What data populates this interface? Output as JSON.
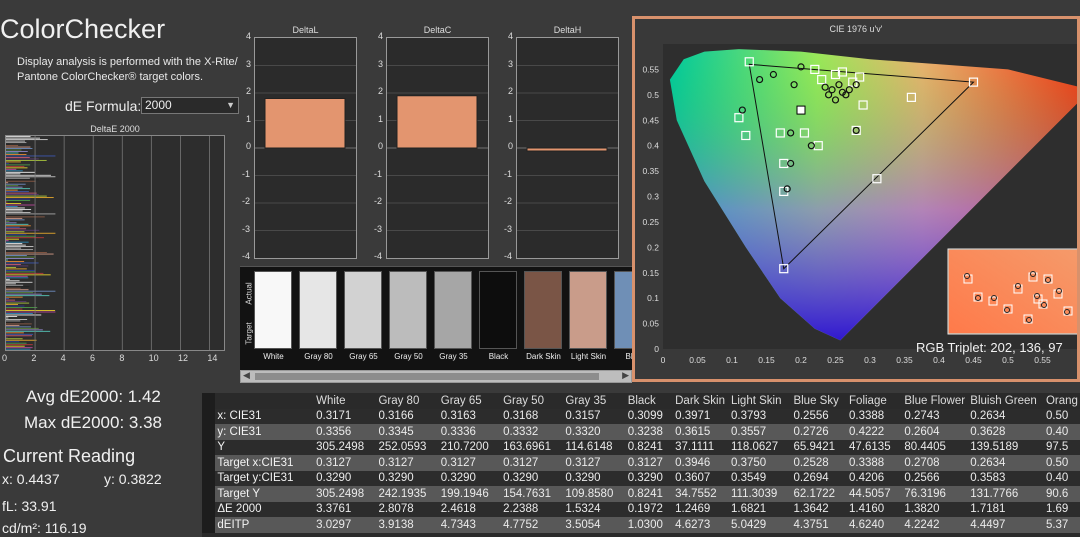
{
  "header": {
    "title": "ColorChecker",
    "description": "Display analysis is performed with the X-Rite/ Pantone ColorChecker® target colors.",
    "formula_label": "dE Formula:",
    "formula_value": "2000"
  },
  "deltae_chart": {
    "title": "DeltaE 2000",
    "x_ticks": [
      "0",
      "2",
      "4",
      "6",
      "8",
      "10",
      "12",
      "14"
    ]
  },
  "mini_charts": [
    {
      "title": "DeltaL",
      "value": 1.8,
      "y_ticks": [
        "4",
        "3",
        "2",
        "1",
        "0",
        "-1",
        "-2",
        "-3",
        "-4"
      ]
    },
    {
      "title": "DeltaC",
      "value": 1.9,
      "y_ticks": [
        "4",
        "3",
        "2",
        "1",
        "0",
        "-1",
        "-2",
        "-3",
        "-4"
      ]
    },
    {
      "title": "DeltaH",
      "value": -0.1,
      "y_ticks": [
        "4",
        "3",
        "2",
        "1",
        "0",
        "-1",
        "-2",
        "-3",
        "-4"
      ]
    }
  ],
  "swatches": {
    "actual_label": "Actual",
    "target_label": "Target",
    "items": [
      {
        "name": "White",
        "color": "#f8f8f8"
      },
      {
        "name": "Gray 80",
        "color": "#e6e6e6"
      },
      {
        "name": "Gray 65",
        "color": "#d2d2d2"
      },
      {
        "name": "Gray 50",
        "color": "#bcbcbc"
      },
      {
        "name": "Gray 35",
        "color": "#a6a6a6"
      },
      {
        "name": "Black",
        "color": "#0d0d0d"
      },
      {
        "name": "Dark Skin",
        "color": "#7a5546"
      },
      {
        "name": "Light Skin",
        "color": "#c99c8a"
      },
      {
        "name": "Blue",
        "color": "#6f8fb6"
      }
    ]
  },
  "cie": {
    "title": "CIE 1976 u'v'",
    "x_ticks": [
      "0",
      "0.05",
      "0.1",
      "0.15",
      "0.2",
      "0.25",
      "0.3",
      "0.35",
      "0.4",
      "0.45",
      "0.5",
      "0.55"
    ],
    "y_ticks": [
      "0.55",
      "0.5",
      "0.45",
      "0.4",
      "0.35",
      "0.3",
      "0.25",
      "0.2",
      "0.15",
      "0.1",
      "0.05",
      "0"
    ],
    "rgb_triplet": "RGB Triplet: 202, 136, 97",
    "inset_color": "#ca8861"
  },
  "stats": {
    "avg": "Avg dE2000: 1.42",
    "max": "Max dE2000: 3.38",
    "current_title": "Current Reading",
    "x": "x: 0.4437",
    "y": "y: 0.3822",
    "fl": "fL: 33.91",
    "cdm2": "cd/m²: 116.19"
  },
  "table": {
    "columns": [
      "White",
      "Gray 80",
      "Gray 65",
      "Gray 50",
      "Gray 35",
      "Black",
      "Dark Skin",
      "Light Skin",
      "Blue Sky",
      "Foliage",
      "Blue Flower",
      "Bluish Green",
      "Orang"
    ],
    "rows": [
      {
        "label": "x: CIE31",
        "values": [
          "0.3171",
          "0.3166",
          "0.3163",
          "0.3168",
          "0.3157",
          "0.3099",
          "0.3971",
          "0.3793",
          "0.2556",
          "0.3388",
          "0.2743",
          "0.2634",
          "0.50"
        ]
      },
      {
        "label": "y: CIE31",
        "values": [
          "0.3356",
          "0.3345",
          "0.3336",
          "0.3332",
          "0.3320",
          "0.3238",
          "0.3615",
          "0.3557",
          "0.2726",
          "0.4222",
          "0.2604",
          "0.3628",
          "0.40"
        ]
      },
      {
        "label": "Y",
        "values": [
          "305.2498",
          "252.0593",
          "210.7200",
          "163.6961",
          "114.6148",
          "0.8241",
          "37.1111",
          "118.0627",
          "65.9421",
          "47.6135",
          "80.4405",
          "139.5189",
          "97.5"
        ]
      },
      {
        "label": "Target x:CIE31",
        "values": [
          "0.3127",
          "0.3127",
          "0.3127",
          "0.3127",
          "0.3127",
          "0.3127",
          "0.3946",
          "0.3750",
          "0.2528",
          "0.3388",
          "0.2708",
          "0.2634",
          "0.50"
        ]
      },
      {
        "label": "Target y:CIE31",
        "values": [
          "0.3290",
          "0.3290",
          "0.3290",
          "0.3290",
          "0.3290",
          "0.3290",
          "0.3607",
          "0.3549",
          "0.2694",
          "0.4206",
          "0.2566",
          "0.3583",
          "0.40"
        ]
      },
      {
        "label": "Target Y",
        "values": [
          "305.2498",
          "242.1935",
          "199.1946",
          "154.7631",
          "109.8580",
          "0.8241",
          "34.7552",
          "111.3039",
          "62.1722",
          "44.5057",
          "76.3196",
          "131.7766",
          "90.6"
        ]
      },
      {
        "label": "ΔE 2000",
        "values": [
          "3.3761",
          "2.8078",
          "2.4618",
          "2.2388",
          "1.5324",
          "0.1972",
          "1.2469",
          "1.6821",
          "1.3642",
          "1.4160",
          "1.3820",
          "1.7181",
          "1.69"
        ]
      },
      {
        "label": "dEITP",
        "values": [
          "3.0297",
          "3.9138",
          "4.7343",
          "4.7752",
          "3.5054",
          "1.0300",
          "4.6273",
          "5.0429",
          "4.3751",
          "4.6240",
          "4.2242",
          "4.4497",
          "5.37"
        ]
      }
    ]
  }
}
